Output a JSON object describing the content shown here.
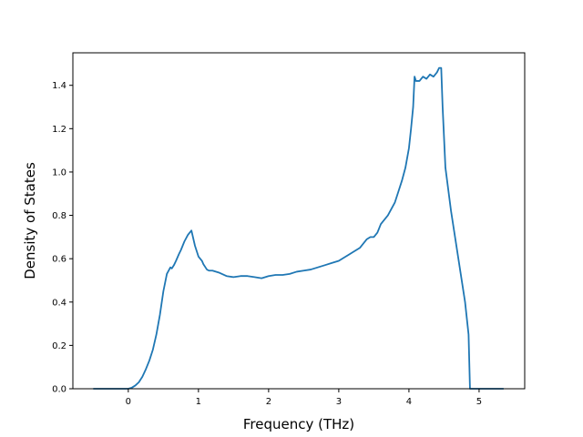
{
  "chart_data": {
    "type": "line",
    "title": "",
    "xlabel": "Frequency (THz)",
    "ylabel": "Density of States",
    "xlim": [
      -0.79,
      5.65
    ],
    "ylim": [
      0.0,
      1.55
    ],
    "xticks": [
      0,
      1,
      2,
      3,
      4,
      5
    ],
    "yticks": [
      0.0,
      0.2,
      0.4,
      0.6,
      0.8,
      1.0,
      1.2,
      1.4
    ],
    "xtick_labels": [
      "0",
      "1",
      "2",
      "3",
      "4",
      "5"
    ],
    "ytick_labels": [
      "0.0",
      "0.2",
      "0.4",
      "0.6",
      "0.8",
      "1.0",
      "1.2",
      "1.4"
    ],
    "grid": false,
    "line_color": "#1f77b4",
    "series": [
      {
        "x": [
          -0.5,
          -0.2,
          0.0,
          0.05,
          0.1,
          0.15,
          0.2,
          0.25,
          0.3,
          0.35,
          0.4,
          0.45,
          0.5,
          0.55,
          0.6,
          0.62,
          0.65,
          0.68,
          0.72,
          0.75,
          0.8,
          0.85,
          0.9,
          0.95,
          1.0,
          1.05,
          1.07,
          1.1,
          1.12,
          1.15,
          1.2,
          1.3,
          1.4,
          1.5,
          1.6,
          1.7,
          1.8,
          1.9,
          2.0,
          2.1,
          2.2,
          2.3,
          2.4,
          2.5,
          2.6,
          2.7,
          2.8,
          2.9,
          3.0,
          3.1,
          3.2,
          3.3,
          3.4,
          3.45,
          3.5,
          3.55,
          3.6,
          3.65,
          3.7,
          3.75,
          3.8,
          3.85,
          3.9,
          3.95,
          4.0,
          4.03,
          4.06,
          4.08,
          4.1,
          4.15,
          4.2,
          4.25,
          4.3,
          4.35,
          4.4,
          4.43,
          4.46,
          4.48,
          4.52,
          4.6,
          4.7,
          4.8,
          4.85,
          4.87,
          5.0,
          5.2,
          5.35
        ],
        "y": [
          0.0,
          0.0,
          0.0,
          0.005,
          0.015,
          0.03,
          0.055,
          0.09,
          0.13,
          0.18,
          0.25,
          0.34,
          0.45,
          0.53,
          0.56,
          0.555,
          0.57,
          0.59,
          0.62,
          0.64,
          0.68,
          0.71,
          0.73,
          0.66,
          0.61,
          0.59,
          0.575,
          0.56,
          0.55,
          0.545,
          0.545,
          0.535,
          0.52,
          0.515,
          0.52,
          0.52,
          0.515,
          0.51,
          0.52,
          0.525,
          0.525,
          0.53,
          0.54,
          0.545,
          0.55,
          0.56,
          0.57,
          0.58,
          0.59,
          0.61,
          0.63,
          0.65,
          0.69,
          0.7,
          0.7,
          0.72,
          0.76,
          0.78,
          0.8,
          0.83,
          0.86,
          0.91,
          0.96,
          1.02,
          1.11,
          1.2,
          1.3,
          1.44,
          1.42,
          1.42,
          1.44,
          1.43,
          1.45,
          1.44,
          1.46,
          1.48,
          1.48,
          1.3,
          1.02,
          0.82,
          0.61,
          0.4,
          0.25,
          0.0,
          0.0,
          0.0,
          0.0
        ]
      }
    ]
  }
}
